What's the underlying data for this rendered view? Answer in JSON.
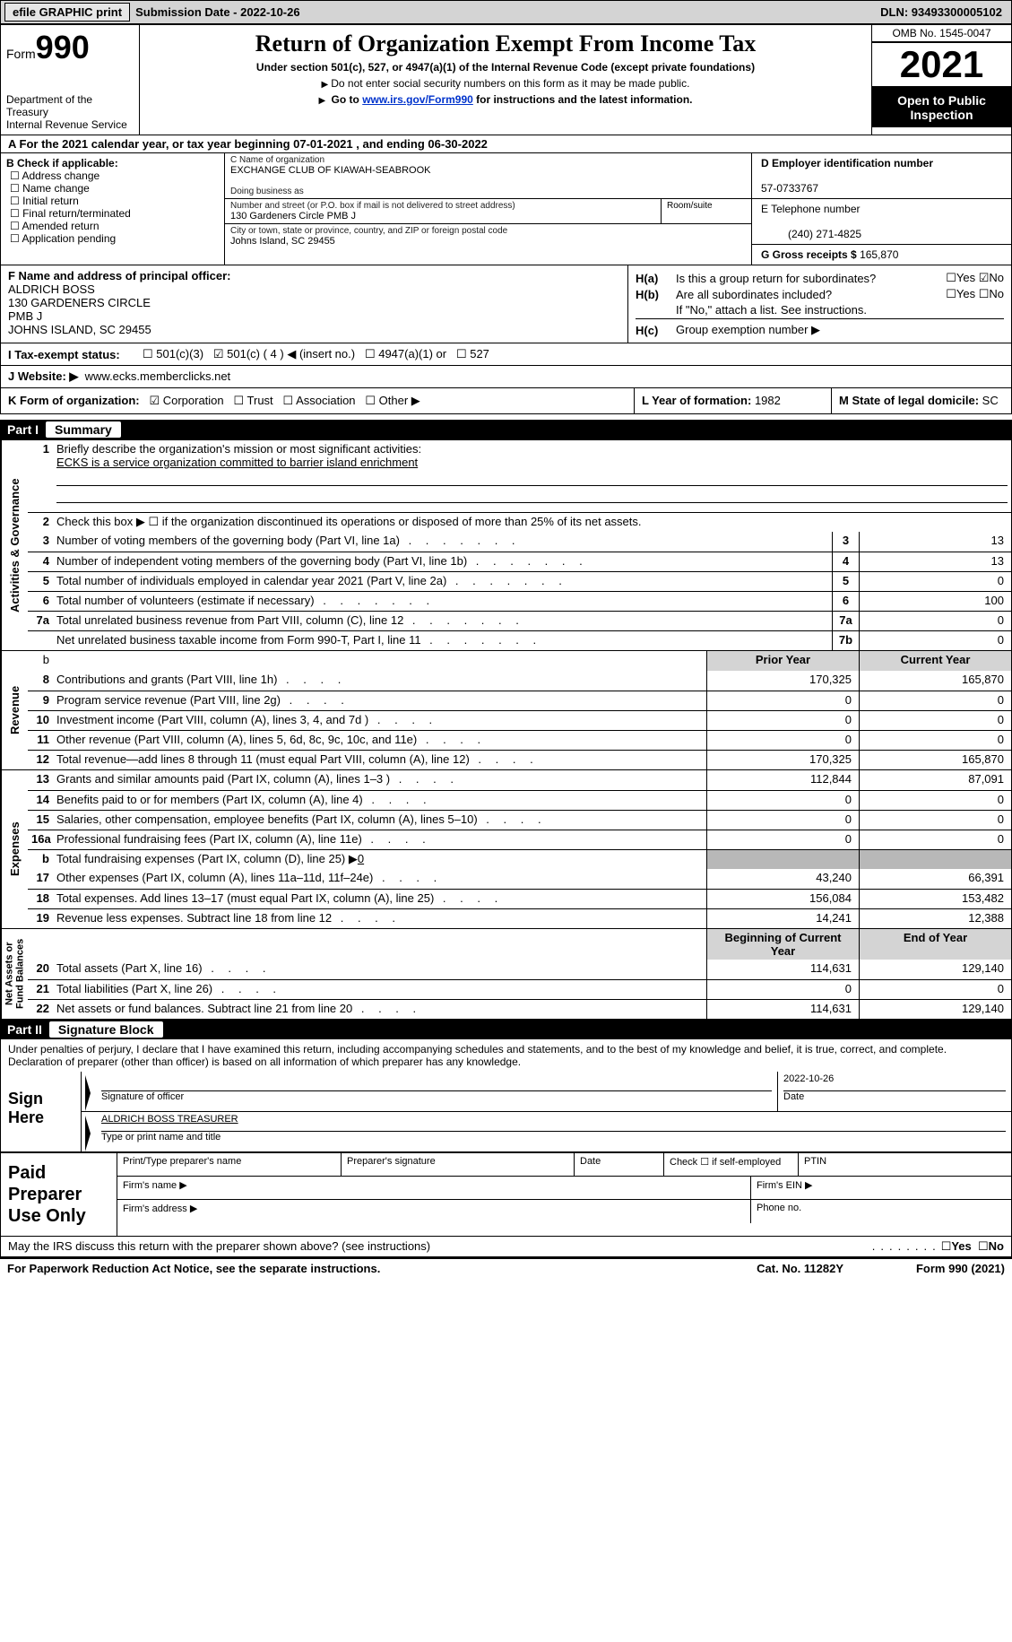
{
  "topbar": {
    "efile": "efile GRAPHIC print",
    "submission": "Submission Date - 2022-10-26",
    "dln": "DLN: 93493300005102"
  },
  "header": {
    "form_word": "Form",
    "form_num": "990",
    "title": "Return of Organization Exempt From Income Tax",
    "subtitle": "Under section 501(c), 527, or 4947(a)(1) of the Internal Revenue Code (except private foundations)",
    "ssn_note": "Do not enter social security numbers on this form as it may be made public.",
    "goto": "Go to ",
    "goto_link": "www.irs.gov/Form990",
    "goto_suffix": " for instructions and the latest information.",
    "dept": "Department of the Treasury\nInternal Revenue Service",
    "omb": "OMB No. 1545-0047",
    "year": "2021",
    "open": "Open to Public\nInspection"
  },
  "rowA": "A  For the 2021 calendar year, or tax year beginning 07-01-2021    , and ending 06-30-2022",
  "leftB": {
    "hdr": "B Check if applicable:",
    "items": [
      "Address change",
      "Name change",
      "Initial return",
      "Final return/terminated",
      "Amended return",
      "Application pending"
    ]
  },
  "midC": {
    "name_lbl": "C Name of organization",
    "name": "EXCHANGE CLUB OF KIAWAH-SEABROOK",
    "dba_lbl": "Doing business as",
    "dba": "",
    "street_lbl": "Number and street (or P.O. box if mail is not delivered to street address)",
    "street": "130 Gardeners Circle PMB J",
    "room_lbl": "Room/suite",
    "city_lbl": "City or town, state or province, country, and ZIP or foreign postal code",
    "city": "Johns Island, SC  29455"
  },
  "rightD": {
    "ein_lbl": "D Employer identification number",
    "ein": "57-0733767",
    "tel_lbl": "E Telephone number",
    "tel": "(240) 271-4825",
    "gross_lbl": "G Gross receipts $",
    "gross": "165,870"
  },
  "f": {
    "lbl": "F Name and address of principal officer:",
    "l1": "ALDRICH BOSS",
    "l2": "130 GARDENERS CIRCLE",
    "l3": "PMB J",
    "l4": "JOHNS ISLAND, SC  29455"
  },
  "h": {
    "ha": "Is this a group return for subordinates?",
    "hb": "Are all subordinates included?",
    "hb_note": "If \"No,\" attach a list. See instructions.",
    "hc": "Group exemption number"
  },
  "status": {
    "lbl": "I   Tax-exempt status:",
    "c3": "501(c)(3)",
    "c": "501(c) ( 4 ) ◀ (insert no.)",
    "a1": "4947(a)(1) or",
    "s527": "527"
  },
  "j": {
    "lbl": "J   Website: ▶",
    "url": "www.ecks.memberclicks.net"
  },
  "k": {
    "lbl": "K Form of organization:",
    "corp": "Corporation",
    "trust": "Trust",
    "assoc": "Association",
    "other": "Other ▶",
    "l_lbl": "L Year of formation:",
    "l_val": "1982",
    "m_lbl": "M State of legal domicile:",
    "m_val": "SC"
  },
  "partI": {
    "num": "Part I",
    "title": "Summary"
  },
  "gov": {
    "label": "Activities & Governance",
    "l1": "Briefly describe the organization's mission or most significant activities:",
    "l1v": "ECKS is a service organization committed to barrier island enrichment",
    "l2": "Check this box ▶ ☐ if the organization discontinued its operations or disposed of more than 25% of its net assets.",
    "rows": [
      {
        "n": "3",
        "d": "Number of voting members of the governing body (Part VI, line 1a)",
        "b": "3",
        "v": "13"
      },
      {
        "n": "4",
        "d": "Number of independent voting members of the governing body (Part VI, line 1b)",
        "b": "4",
        "v": "13"
      },
      {
        "n": "5",
        "d": "Total number of individuals employed in calendar year 2021 (Part V, line 2a)",
        "b": "5",
        "v": "0"
      },
      {
        "n": "6",
        "d": "Total number of volunteers (estimate if necessary)",
        "b": "6",
        "v": "100"
      },
      {
        "n": "7a",
        "d": "Total unrelated business revenue from Part VIII, column (C), line 12",
        "b": "7a",
        "v": "0"
      },
      {
        "n": "",
        "d": "Net unrelated business taxable income from Form 990-T, Part I, line 11",
        "b": "7b",
        "v": "0"
      }
    ]
  },
  "revhdr": {
    "py": "Prior Year",
    "cy": "Current Year"
  },
  "rev": {
    "label": "Revenue",
    "rows": [
      {
        "n": "8",
        "d": "Contributions and grants (Part VIII, line 1h)",
        "py": "170,325",
        "cy": "165,870"
      },
      {
        "n": "9",
        "d": "Program service revenue (Part VIII, line 2g)",
        "py": "0",
        "cy": "0"
      },
      {
        "n": "10",
        "d": "Investment income (Part VIII, column (A), lines 3, 4, and 7d )",
        "py": "0",
        "cy": "0"
      },
      {
        "n": "11",
        "d": "Other revenue (Part VIII, column (A), lines 5, 6d, 8c, 9c, 10c, and 11e)",
        "py": "0",
        "cy": "0"
      },
      {
        "n": "12",
        "d": "Total revenue—add lines 8 through 11 (must equal Part VIII, column (A), line 12)",
        "py": "170,325",
        "cy": "165,870"
      }
    ]
  },
  "exp": {
    "label": "Expenses",
    "rows": [
      {
        "n": "13",
        "d": "Grants and similar amounts paid (Part IX, column (A), lines 1–3 )",
        "py": "112,844",
        "cy": "87,091"
      },
      {
        "n": "14",
        "d": "Benefits paid to or for members (Part IX, column (A), line 4)",
        "py": "0",
        "cy": "0"
      },
      {
        "n": "15",
        "d": "Salaries, other compensation, employee benefits (Part IX, column (A), lines 5–10)",
        "py": "0",
        "cy": "0"
      },
      {
        "n": "16a",
        "d": "Professional fundraising fees (Part IX, column (A), line 11e)",
        "py": "0",
        "cy": "0"
      }
    ],
    "b": {
      "n": "b",
      "d": "Total fundraising expenses (Part IX, column (D), line 25) ▶",
      "v": "0"
    },
    "rows2": [
      {
        "n": "17",
        "d": "Other expenses (Part IX, column (A), lines 11a–11d, 11f–24e)",
        "py": "43,240",
        "cy": "66,391"
      },
      {
        "n": "18",
        "d": "Total expenses. Add lines 13–17 (must equal Part IX, column (A), line 25)",
        "py": "156,084",
        "cy": "153,482"
      },
      {
        "n": "19",
        "d": "Revenue less expenses. Subtract line 18 from line 12",
        "py": "14,241",
        "cy": "12,388"
      }
    ]
  },
  "nethdr": {
    "by": "Beginning of Current Year",
    "ey": "End of Year"
  },
  "net": {
    "label": "Net Assets or\nFund Balances",
    "rows": [
      {
        "n": "20",
        "d": "Total assets (Part X, line 16)",
        "py": "114,631",
        "cy": "129,140"
      },
      {
        "n": "21",
        "d": "Total liabilities (Part X, line 26)",
        "py": "0",
        "cy": "0"
      },
      {
        "n": "22",
        "d": "Net assets or fund balances. Subtract line 21 from line 20",
        "py": "114,631",
        "cy": "129,140"
      }
    ]
  },
  "partII": {
    "num": "Part II",
    "title": "Signature Block"
  },
  "sig": {
    "declare": "Under penalties of perjury, I declare that I have examined this return, including accompanying schedules and statements, and to the best of my knowledge and belief, it is true, correct, and complete. Declaration of preparer (other than officer) is based on all information of which preparer has any knowledge.",
    "sign_here": "Sign Here",
    "sig_officer": "Signature of officer",
    "date_lbl": "Date",
    "date_val": "2022-10-26",
    "name_title": "ALDRICH BOSS  TREASURER",
    "type_name": "Type or print name and title"
  },
  "paid": {
    "lbl": "Paid Preparer Use Only",
    "r1": {
      "c1": "Print/Type preparer's name",
      "c2": "Preparer's signature",
      "c3": "Date",
      "c4": "Check ☐ if self-employed",
      "c5": "PTIN"
    },
    "r2": {
      "c1": "Firm's name   ▶",
      "c2": "Firm's EIN ▶"
    },
    "r3": {
      "c1": "Firm's address ▶",
      "c2": "Phone no."
    }
  },
  "footer": {
    "discuss": "May the IRS discuss this return with the preparer shown above? (see instructions)",
    "yes": "Yes",
    "no": "No",
    "pra": "For Paperwork Reduction Act Notice, see the separate instructions.",
    "cat": "Cat. No. 11282Y",
    "form": "Form 990 (2021)"
  }
}
